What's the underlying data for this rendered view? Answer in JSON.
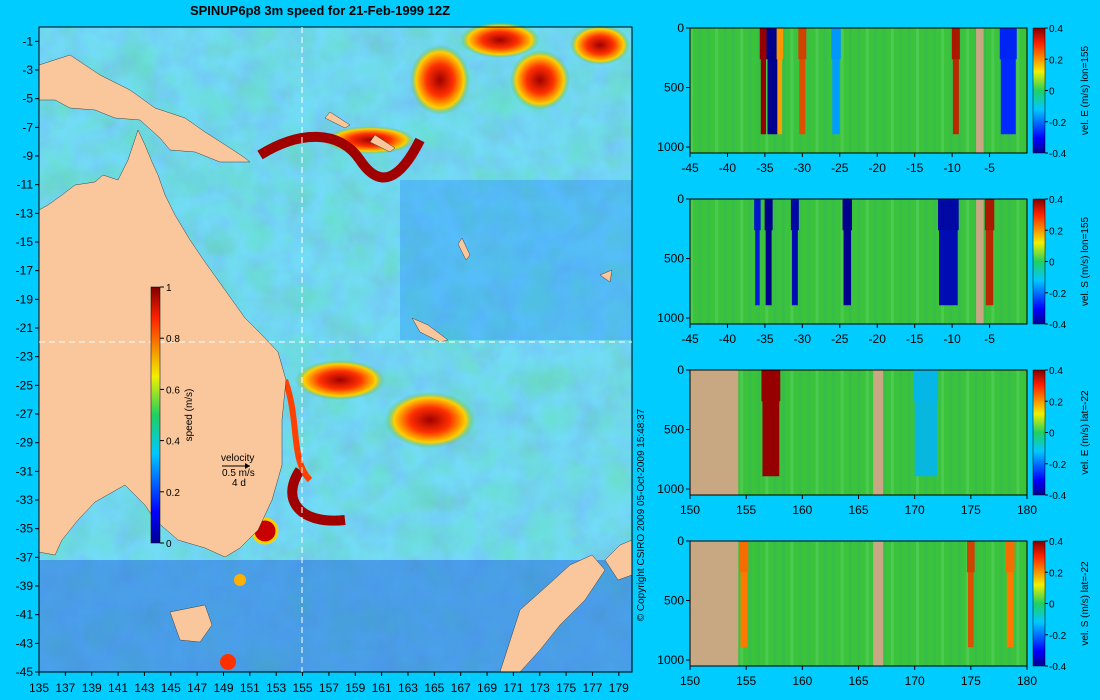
{
  "title": "SPINUP6p8 3m speed for 21-Feb-1999 12Z",
  "copyright": "© Copyright CSIRO 2009   05-Oct-2009 15:48:37",
  "map": {
    "y_ticks": [
      "-1",
      "-3",
      "-5",
      "-7",
      "-9",
      "-11",
      "-13",
      "-15",
      "-17",
      "-19",
      "-21",
      "-23",
      "-25",
      "-27",
      "-29",
      "-31",
      "-33",
      "-35",
      "-37",
      "-39",
      "-41",
      "-43",
      "-45"
    ],
    "x_ticks": [
      "135",
      "137",
      "139",
      "141",
      "143",
      "145",
      "147",
      "149",
      "151",
      "153",
      "155",
      "157",
      "159",
      "161",
      "163",
      "165",
      "167",
      "169",
      "171",
      "173",
      "175",
      "177",
      "179"
    ],
    "colorbar": {
      "label": "speed (m/s)",
      "ticks": [
        "1",
        "0.8",
        "0.6",
        "0.4",
        "0.2",
        "0"
      ],
      "range": [
        0,
        1
      ]
    },
    "legend": {
      "label": "velocity",
      "scale": "0.5 m/s",
      "duration": "4 d"
    },
    "section_lines": {
      "lon": 155,
      "lat": -22
    },
    "colors": {
      "land": "#f9c79b",
      "background": "#00ccff"
    }
  },
  "chart_data": [
    {
      "type": "heatmap",
      "title": "SPINUP6p8 3m speed for 21-Feb-1999 12Z",
      "x_range": [
        135,
        180
      ],
      "y_range": [
        -45,
        0
      ],
      "colorbar_label": "speed (m/s)",
      "color_range": [
        0,
        1
      ]
    },
    {
      "type": "heatmap",
      "ylabel": "vel. E (m/s) lon=155",
      "x_ticks": [
        "-45",
        "-40",
        "-35",
        "-30",
        "-25",
        "-20",
        "-15",
        "-10",
        "-5"
      ],
      "y_ticks": [
        "0",
        "500",
        "1000"
      ],
      "x_range": [
        -45,
        0
      ],
      "y_range": [
        0,
        1050
      ],
      "color_ticks": [
        "0.4",
        "0.2",
        "0",
        "-0.2",
        "-0.4"
      ],
      "color_range": [
        -0.4,
        0.4
      ],
      "features": [
        {
          "x": -35.2,
          "width": 0.7,
          "value": 0.45
        },
        {
          "x": -34.0,
          "width": 1.3,
          "value": -0.45
        },
        {
          "x": -33.0,
          "width": 0.6,
          "value": 0.25
        },
        {
          "x": -30.0,
          "width": 0.8,
          "value": 0.35
        },
        {
          "x": -25.5,
          "width": 1.0,
          "value": -0.15
        },
        {
          "x": -9.5,
          "width": 0.8,
          "value": 0.4
        },
        {
          "x": -2.5,
          "width": 2.0,
          "value": -0.3
        }
      ],
      "land": [
        {
          "x": -6.8,
          "width": 1.0
        }
      ]
    },
    {
      "type": "heatmap",
      "ylabel": "vel. S (m/s) lon=155",
      "x_ticks": [
        "-45",
        "-40",
        "-35",
        "-30",
        "-25",
        "-20",
        "-15",
        "-10",
        "-5"
      ],
      "y_ticks": [
        "0",
        "500",
        "1000"
      ],
      "x_range": [
        -45,
        0
      ],
      "y_range": [
        0,
        1050
      ],
      "color_ticks": [
        "0.4",
        "0.2",
        "0",
        "-0.2",
        "-0.4"
      ],
      "color_range": [
        -0.4,
        0.4
      ],
      "features": [
        {
          "x": -36.0,
          "width": 0.6,
          "value": -0.35
        },
        {
          "x": -34.5,
          "width": 0.8,
          "value": -0.45
        },
        {
          "x": -31.0,
          "width": 0.8,
          "value": -0.4
        },
        {
          "x": -24.0,
          "width": 1.0,
          "value": -0.45
        },
        {
          "x": -10.5,
          "width": 2.5,
          "value": -0.4
        },
        {
          "x": -5.0,
          "width": 1.0,
          "value": 0.4
        }
      ],
      "land": [
        {
          "x": -6.8,
          "width": 1.0
        }
      ]
    },
    {
      "type": "heatmap",
      "ylabel": "vel. E (m/s) lat=-22",
      "x_ticks": [
        "150",
        "155",
        "160",
        "165",
        "170",
        "175",
        "180"
      ],
      "y_ticks": [
        "0",
        "500",
        "1000"
      ],
      "x_range": [
        150,
        180
      ],
      "y_range": [
        0,
        1050
      ],
      "color_ticks": [
        "0.4",
        "0.2",
        "0",
        "-0.2",
        "-0.4"
      ],
      "color_range": [
        -0.4,
        0.4
      ],
      "features": [
        {
          "x": 157.2,
          "width": 1.5,
          "value": 0.45
        },
        {
          "x": 171.0,
          "width": 2.0,
          "value": -0.1
        }
      ],
      "land": [
        {
          "x": 150,
          "width": 4.3
        },
        {
          "x": 166.3,
          "width": 0.9
        }
      ]
    },
    {
      "type": "heatmap",
      "ylabel": "vel. S (m/s) lat=-22",
      "x_ticks": [
        "150",
        "155",
        "160",
        "165",
        "170",
        "175",
        "180"
      ],
      "y_ticks": [
        "0",
        "500",
        "1000"
      ],
      "x_range": [
        150,
        180
      ],
      "y_range": [
        0,
        1050
      ],
      "color_ticks": [
        "0.4",
        "0.2",
        "0",
        "-0.2",
        "-0.4"
      ],
      "color_range": [
        -0.4,
        0.4
      ],
      "features": [
        {
          "x": 154.8,
          "width": 0.6,
          "value": 0.3
        },
        {
          "x": 175.0,
          "width": 0.5,
          "value": 0.35
        },
        {
          "x": 178.5,
          "width": 0.6,
          "value": 0.3
        }
      ],
      "land": [
        {
          "x": 150,
          "width": 4.3
        },
        {
          "x": 166.3,
          "width": 0.9
        }
      ]
    }
  ]
}
